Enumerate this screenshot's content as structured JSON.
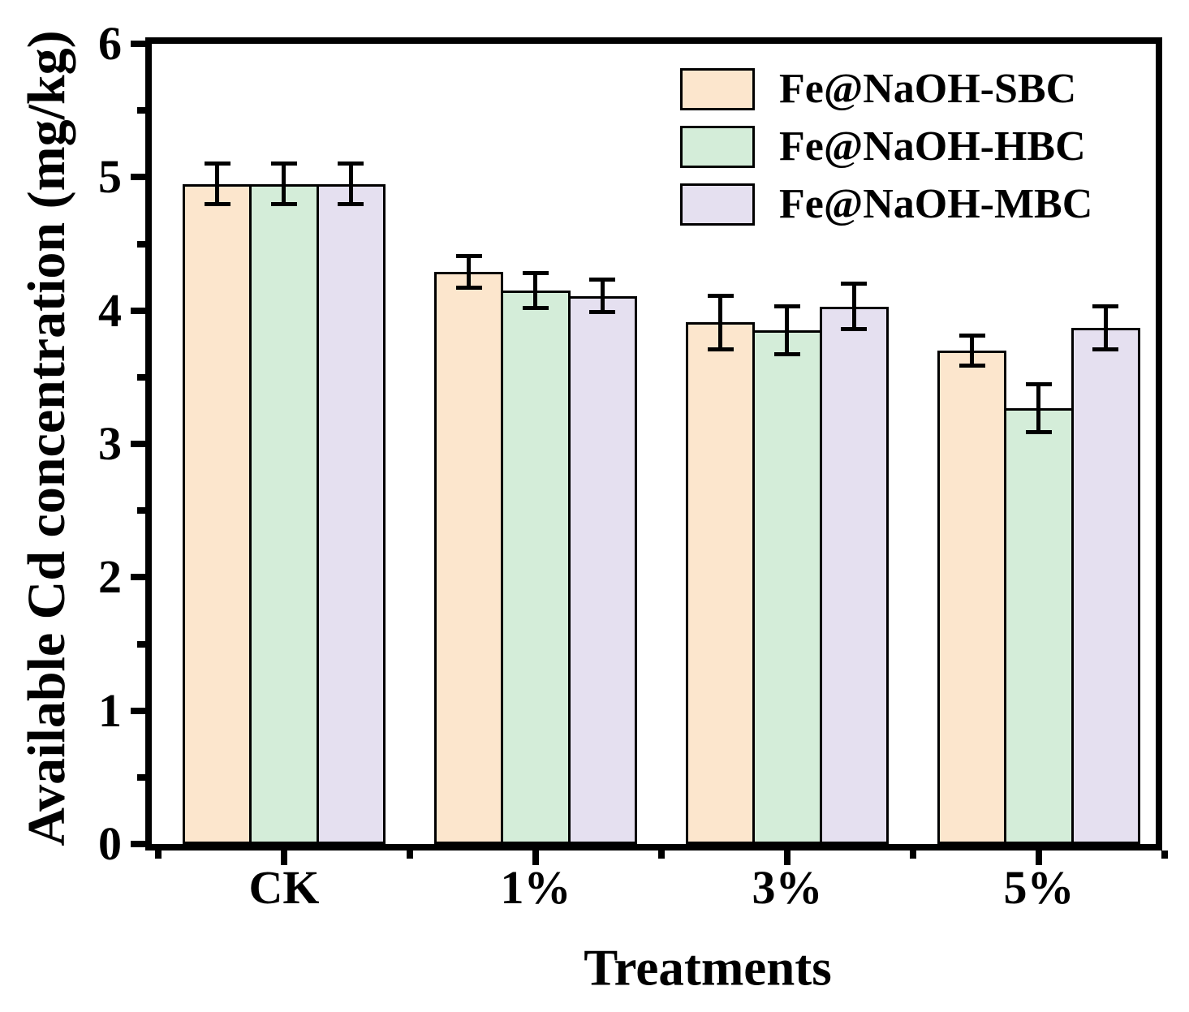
{
  "figure": {
    "background": "#ffffff",
    "axis_color": "#000000"
  },
  "chart_data": {
    "type": "bar",
    "title": "",
    "xlabel": "Treatments",
    "ylabel": "Available Cd concentration (mg/kg)",
    "categories": [
      "CK",
      "1%",
      "3%",
      "5%"
    ],
    "series": [
      {
        "name": "Fe@NaOH-SBC",
        "color": "#FCE6CD",
        "values": [
          4.95,
          4.29,
          3.91,
          3.7
        ],
        "errors": [
          0.15,
          0.12,
          0.2,
          0.11
        ]
      },
      {
        "name": "Fe@NaOH-HBC",
        "color": "#D4EDD9",
        "values": [
          4.95,
          4.15,
          3.85,
          3.27
        ],
        "errors": [
          0.15,
          0.13,
          0.18,
          0.18
        ]
      },
      {
        "name": "Fe@NaOH-MBC",
        "color": "#E5E0F0",
        "values": [
          4.95,
          4.11,
          4.03,
          3.87
        ],
        "errors": [
          0.15,
          0.12,
          0.17,
          0.16
        ]
      }
    ],
    "ylim": [
      0,
      6
    ],
    "yticks": [
      0,
      1,
      2,
      3,
      4,
      5,
      6
    ],
    "ytick_minor_step": 0.5,
    "grid": false,
    "legend_position": "top-right",
    "bar_edge_color": "#000000",
    "error_bar_color": "#000000"
  }
}
